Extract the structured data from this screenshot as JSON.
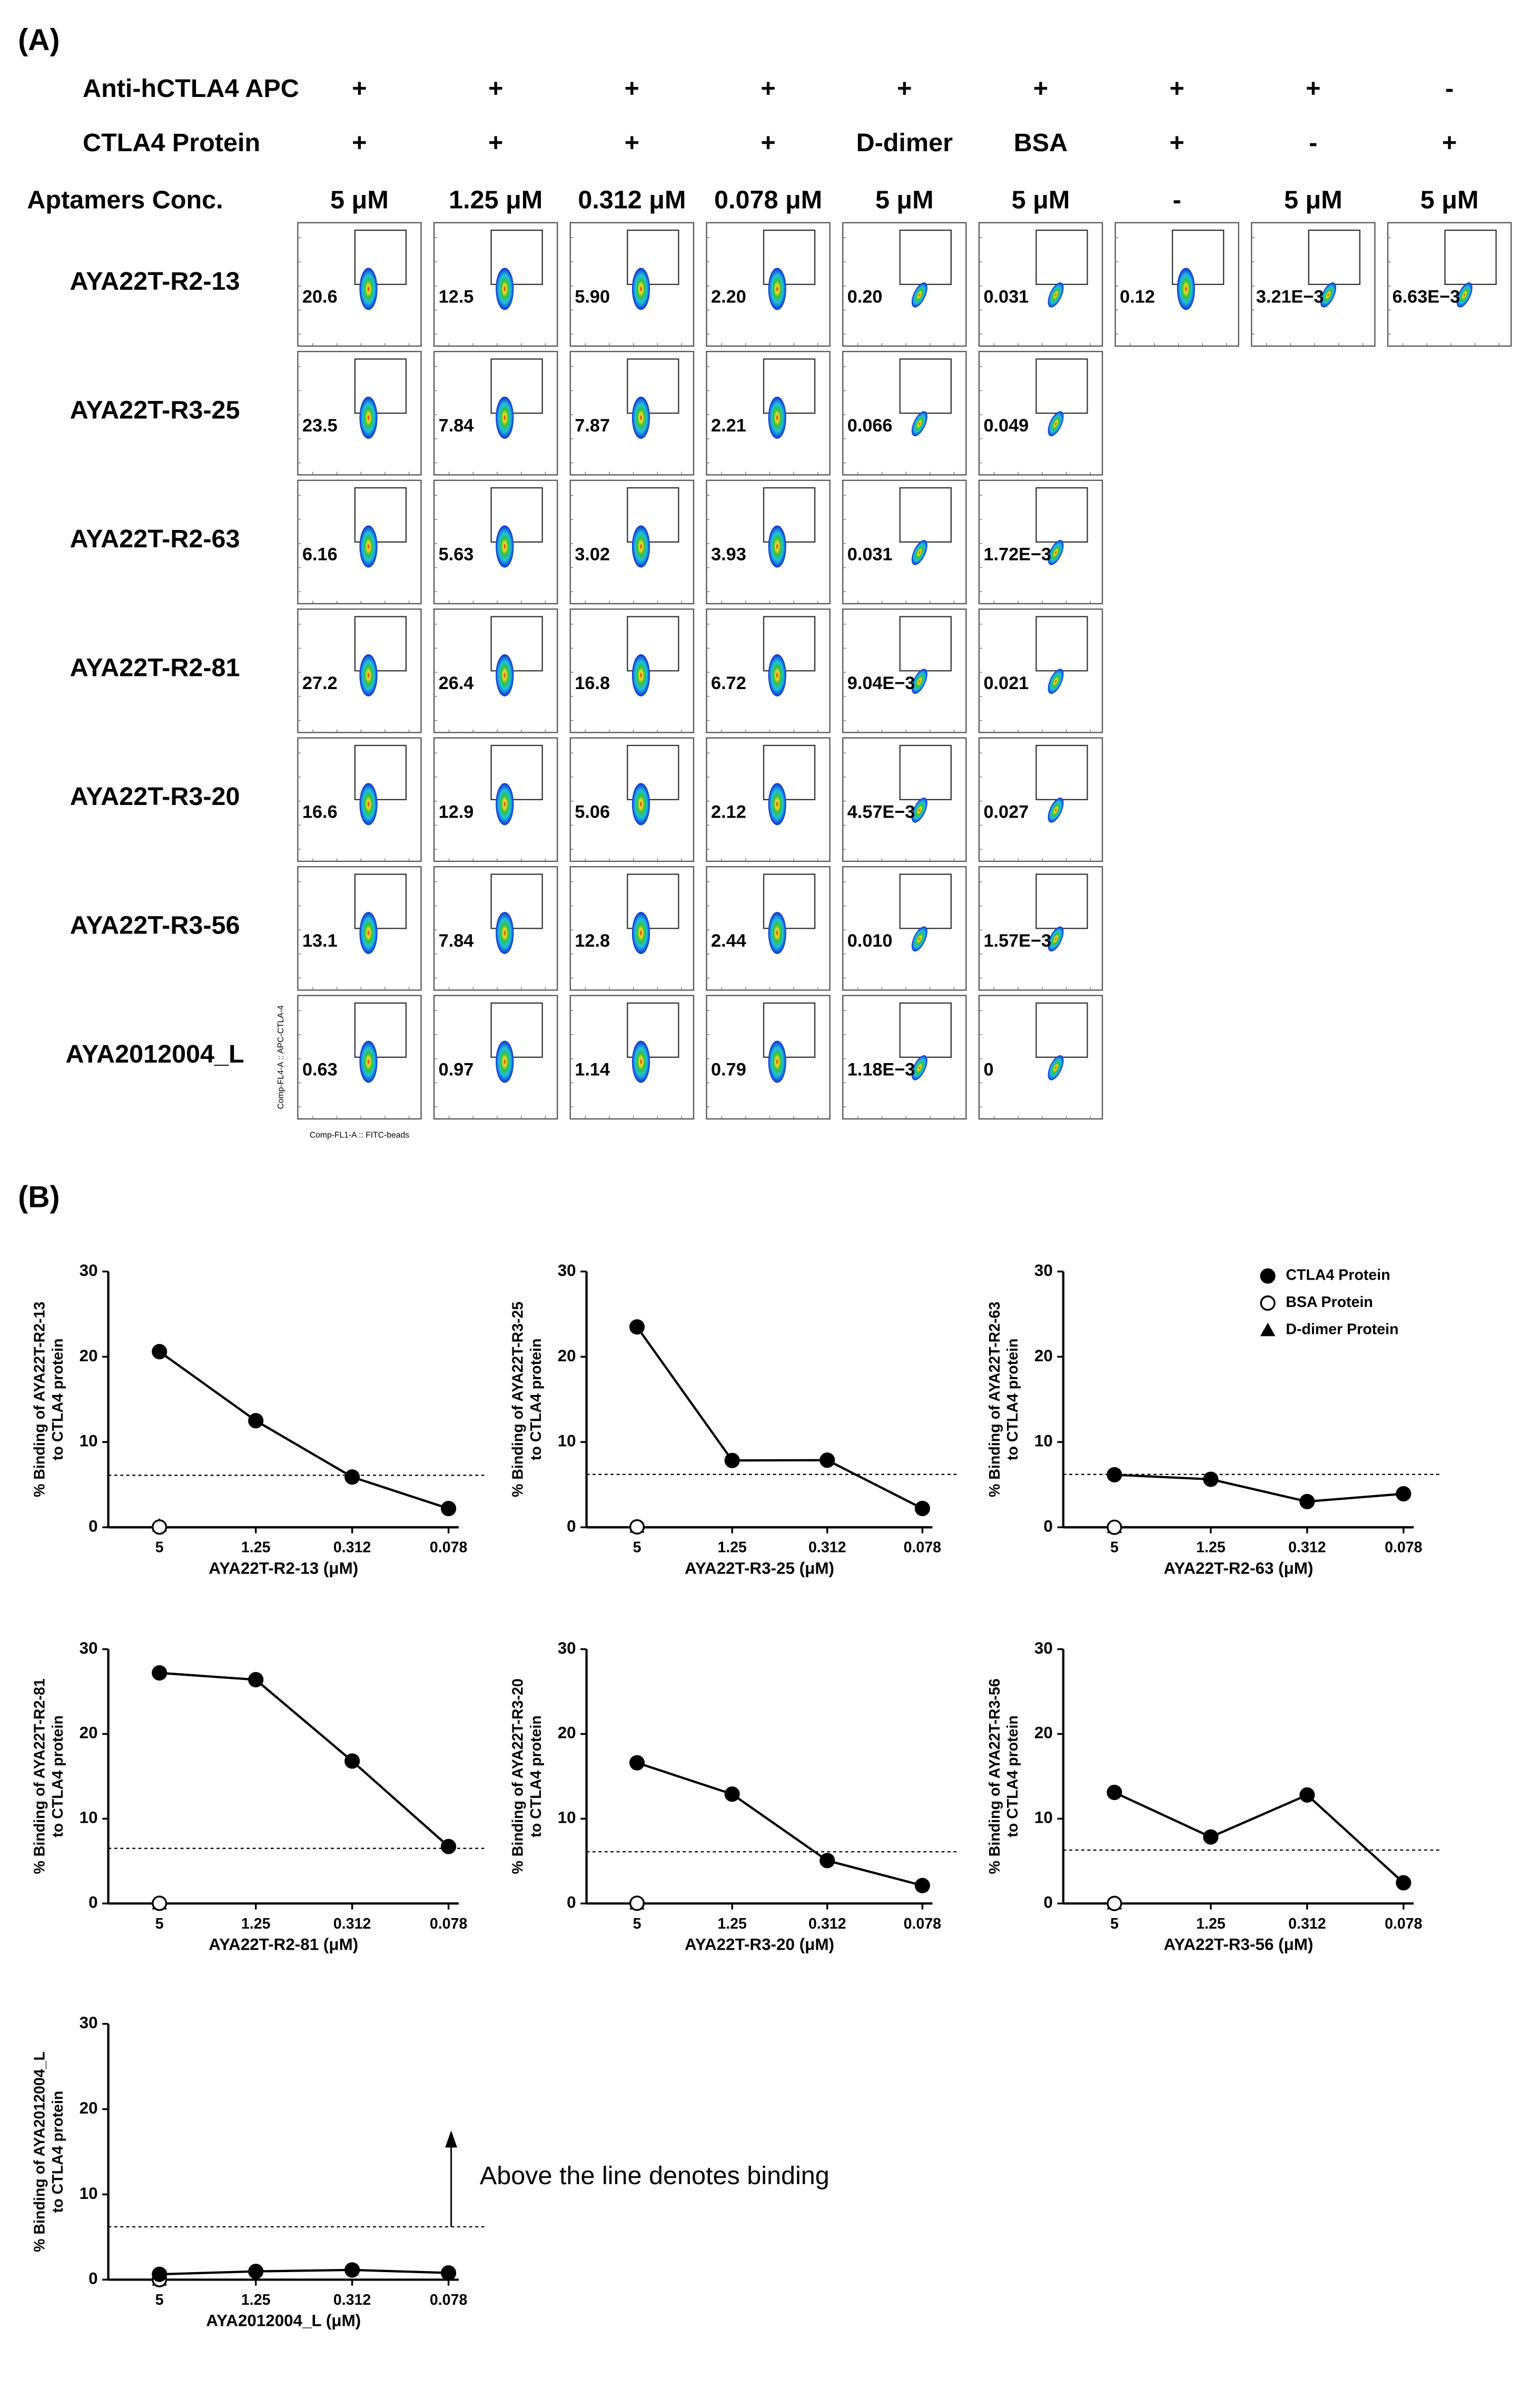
{
  "panel_a": {
    "label": "(A)",
    "conditions": [
      {
        "name": "Anti-hCTLA4 APC",
        "values": [
          "+",
          "+",
          "+",
          "+",
          "+",
          "+",
          "+",
          "+",
          "-"
        ]
      },
      {
        "name": "CTLA4 Protein",
        "values": [
          "+",
          "+",
          "+",
          "+",
          "D-dimer",
          "BSA",
          "+",
          "-",
          "+"
        ]
      },
      {
        "name": "Aptamers Conc.",
        "values": [
          "5 μM",
          "1.25 μM",
          "0.312 μM",
          "0.078 μM",
          "5 μM",
          "5 μM",
          "-",
          "5 μM",
          "5 μM"
        ]
      }
    ],
    "rows": [
      {
        "name": "AYA22T-R2-13",
        "values": [
          "20.6",
          "12.5",
          "5.90",
          "2.20",
          "0.20",
          "0.031",
          "0.12",
          "3.21E−3",
          "6.63E−3"
        ]
      },
      {
        "name": "AYA22T-R3-25",
        "values": [
          "23.5",
          "7.84",
          "7.87",
          "2.21",
          "0.066",
          "0.049"
        ]
      },
      {
        "name": "AYA22T-R2-63",
        "values": [
          "6.16",
          "5.63",
          "3.02",
          "3.93",
          "0.031",
          "1.72E−3"
        ]
      },
      {
        "name": "AYA22T-R2-81",
        "values": [
          "27.2",
          "26.4",
          "16.8",
          "6.72",
          "9.04E−3",
          "0.021"
        ]
      },
      {
        "name": "AYA22T-R3-20",
        "values": [
          "16.6",
          "12.9",
          "5.06",
          "2.12",
          "4.57E−3",
          "0.027"
        ]
      },
      {
        "name": "AYA22T-R3-56",
        "values": [
          "13.1",
          "7.84",
          "12.8",
          "2.44",
          "0.010",
          "1.57E−3"
        ]
      },
      {
        "name": "AYA2012004_L",
        "values": [
          "0.63",
          "0.97",
          "1.14",
          "0.79",
          "1.18E−3",
          "0"
        ]
      }
    ],
    "ylabel": "Comp-FL4-A :: APC-CTLA-4",
    "xlabel": "Comp-FL1-A :: FITC-beads"
  },
  "panel_b": {
    "label": "(B)"
  },
  "chart_data": [
    {
      "type": "line",
      "categories": [
        "5",
        "1.25",
        "0.312",
        "0.078"
      ],
      "ylim": [
        0,
        30
      ],
      "yticks": [
        0,
        10,
        20,
        30
      ],
      "threshold": 6.1,
      "ylabel": [
        "% Binding of AYA22T-R2-13",
        "to CTLA4 protein"
      ],
      "xlabel": "AYA22T-R2-13 (μM)",
      "series": [
        {
          "name": "CTLA4 Protein",
          "color": "#000000",
          "marker": "circle",
          "values": [
            20.6,
            12.5,
            5.9,
            2.2
          ]
        },
        {
          "name": "BSA Protein",
          "color": "#000000",
          "marker": "open-circle",
          "values": [
            0.031,
            null,
            null,
            null
          ]
        },
        {
          "name": "D-dimer Protein",
          "color": "#000000",
          "marker": "triangle",
          "values": [
            0.2,
            null,
            null,
            null
          ]
        }
      ]
    },
    {
      "type": "line",
      "categories": [
        "5",
        "1.25",
        "0.312",
        "0.078"
      ],
      "ylim": [
        0,
        30
      ],
      "yticks": [
        0,
        10,
        20,
        30
      ],
      "threshold": 6.2,
      "ylabel": [
        "% Binding of AYA22T-R3-25",
        "to CTLA4 protein"
      ],
      "xlabel": "AYA22T-R3-25 (μM)",
      "series": [
        {
          "name": "CTLA4 Protein",
          "color": "#000000",
          "marker": "circle",
          "values": [
            23.5,
            7.84,
            7.87,
            2.21
          ]
        },
        {
          "name": "BSA Protein",
          "color": "#000000",
          "marker": "open-circle",
          "values": [
            0.049,
            null,
            null,
            null
          ]
        },
        {
          "name": "D-dimer Protein",
          "color": "#000000",
          "marker": "triangle",
          "values": [
            0.066,
            null,
            null,
            null
          ]
        }
      ]
    },
    {
      "type": "line",
      "categories": [
        "5",
        "1.25",
        "0.312",
        "0.078"
      ],
      "ylim": [
        0,
        30
      ],
      "yticks": [
        0,
        10,
        20,
        30
      ],
      "threshold": 6.2,
      "legend": "top-right",
      "ylabel": [
        "% Binding of AYA22T-R2-63",
        "to CTLA4 protein"
      ],
      "xlabel": "AYA22T-R2-63 (μM)",
      "series": [
        {
          "name": "CTLA4 Protein",
          "color": "#000000",
          "marker": "circle",
          "values": [
            6.16,
            5.63,
            3.02,
            3.93
          ]
        },
        {
          "name": "BSA Protein",
          "color": "#000000",
          "marker": "open-circle",
          "values": [
            0.00172,
            null,
            null,
            null
          ]
        },
        {
          "name": "D-dimer Protein",
          "color": "#000000",
          "marker": "triangle",
          "values": [
            0.031,
            null,
            null,
            null
          ]
        }
      ]
    },
    {
      "type": "line",
      "categories": [
        "5",
        "1.25",
        "0.312",
        "0.078"
      ],
      "ylim": [
        0,
        30
      ],
      "yticks": [
        0,
        10,
        20,
        30
      ],
      "threshold": 6.5,
      "ylabel": [
        "% Binding of AYA22T-R2-81",
        "to CTLA4 protein"
      ],
      "xlabel": "AYA22T-R2-81 (μM)",
      "series": [
        {
          "name": "CTLA4 Protein",
          "color": "#000000",
          "marker": "circle",
          "values": [
            27.2,
            26.4,
            16.8,
            6.72
          ]
        },
        {
          "name": "BSA Protein",
          "color": "#000000",
          "marker": "open-circle",
          "values": [
            0.021,
            null,
            null,
            null
          ]
        },
        {
          "name": "D-dimer Protein",
          "color": "#000000",
          "marker": "triangle",
          "values": [
            0.00904,
            null,
            null,
            null
          ]
        }
      ]
    },
    {
      "type": "line",
      "categories": [
        "5",
        "1.25",
        "0.312",
        "0.078"
      ],
      "ylim": [
        0,
        30
      ],
      "yticks": [
        0,
        10,
        20,
        30
      ],
      "threshold": 6.1,
      "ylabel": [
        "% Binding of AYA22T-R3-20",
        "to CTLA4 protein"
      ],
      "xlabel": "AYA22T-R3-20 (μM)",
      "series": [
        {
          "name": "CTLA4 Protein",
          "color": "#000000",
          "marker": "circle",
          "values": [
            16.6,
            12.9,
            5.06,
            2.12
          ]
        },
        {
          "name": "BSA Protein",
          "color": "#000000",
          "marker": "open-circle",
          "values": [
            0.027,
            null,
            null,
            null
          ]
        },
        {
          "name": "D-dimer Protein",
          "color": "#000000",
          "marker": "triangle",
          "values": [
            0.00457,
            null,
            null,
            null
          ]
        }
      ]
    },
    {
      "type": "line",
      "categories": [
        "5",
        "1.25",
        "0.312",
        "0.078"
      ],
      "ylim": [
        0,
        30
      ],
      "yticks": [
        0,
        10,
        20,
        30
      ],
      "threshold": 6.3,
      "ylabel": [
        "% Binding of AYA22T-R3-56",
        "to CTLA4 protein"
      ],
      "xlabel": "AYA22T-R3-56 (μM)",
      "series": [
        {
          "name": "CTLA4 Protein",
          "color": "#000000",
          "marker": "circle",
          "values": [
            13.1,
            7.84,
            12.8,
            2.44
          ]
        },
        {
          "name": "BSA Protein",
          "color": "#000000",
          "marker": "open-circle",
          "values": [
            0.00157,
            null,
            null,
            null
          ]
        },
        {
          "name": "D-dimer Protein",
          "color": "#000000",
          "marker": "triangle",
          "values": [
            0.01,
            null,
            null,
            null
          ]
        }
      ]
    },
    {
      "type": "line",
      "categories": [
        "5",
        "1.25",
        "0.312",
        "0.078"
      ],
      "ylim": [
        0,
        30
      ],
      "yticks": [
        0,
        10,
        20,
        30
      ],
      "threshold": 6.2,
      "ylabel": [
        "% Binding of AYA2012004_L",
        "to CTLA4 protein"
      ],
      "xlabel": "AYA2012004_L (μM)",
      "annotation": "Above the line denotes binding",
      "series": [
        {
          "name": "CTLA4 Protein",
          "color": "#000000",
          "marker": "circle",
          "values": [
            0.63,
            0.97,
            1.14,
            0.79
          ]
        },
        {
          "name": "BSA Protein",
          "color": "#000000",
          "marker": "open-circle",
          "values": [
            0,
            null,
            null,
            null
          ]
        },
        {
          "name": "D-dimer Protein",
          "color": "#000000",
          "marker": "triangle",
          "values": [
            0.00118,
            null,
            null,
            null
          ]
        }
      ]
    }
  ]
}
